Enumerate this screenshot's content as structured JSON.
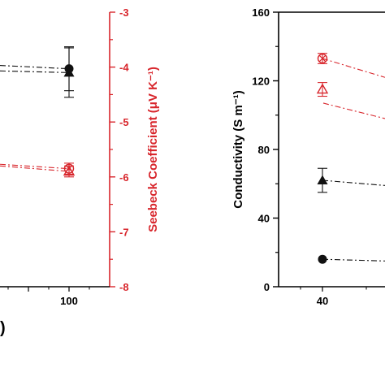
{
  "colors": {
    "black": "#111111",
    "red": "#d8262c"
  },
  "chart_data": [
    {
      "type": "line",
      "panel": "left",
      "xlim": [
        0,
        130
      ],
      "x_ticks": [
        100
      ],
      "x_tick_labels": [
        "100"
      ],
      "xlabel_fragment": ")",
      "y_right": {
        "label": "Seebeck Coefficient (μV K⁻¹)",
        "ylim": [
          -8,
          -3
        ],
        "ticks": [
          -3,
          -4,
          -5,
          -6,
          -7,
          -8
        ],
        "tick_labels": [
          "-3",
          "-4",
          "-5",
          "-6",
          "-7",
          "-8"
        ]
      },
      "series": [
        {
          "marker": "circle",
          "color": "black",
          "x_from": 0,
          "points": [
            {
              "x": 100,
              "y": -4.03,
              "err": 0.4
            }
          ],
          "y_start": -3.97
        },
        {
          "marker": "triangle",
          "color": "black",
          "x_from": 0,
          "points": [
            {
              "x": 100,
              "y": -4.1,
              "err": 0.45
            }
          ],
          "y_start": -4.07
        },
        {
          "marker": "open-circle-x",
          "color": "red",
          "x_from": 0,
          "points": [
            {
              "x": 100,
              "y": -5.85,
              "err": 0.1
            }
          ],
          "y_start": -5.77
        },
        {
          "marker": "open-triangle",
          "color": "red",
          "x_from": 0,
          "points": [
            {
              "x": 100,
              "y": -5.9,
              "err": 0.1
            }
          ],
          "y_start": -5.8
        }
      ]
    },
    {
      "type": "line",
      "panel": "right",
      "xlim": [
        30,
        70
      ],
      "x_ticks": [
        40
      ],
      "x_tick_labels": [
        "40"
      ],
      "ylabel": "Conductivity (S m⁻¹)",
      "ylim": [
        0,
        160
      ],
      "y_ticks": [
        0,
        40,
        80,
        120,
        160
      ],
      "y_tick_labels": [
        "0",
        "40",
        "80",
        "120",
        "160"
      ],
      "series": [
        {
          "marker": "open-circle-x",
          "color": "red",
          "points": [
            {
              "x": 40,
              "y": 133,
              "err": 3
            }
          ],
          "y_end": 122
        },
        {
          "marker": "open-triangle",
          "color": "red",
          "points": [
            {
              "x": 40,
              "y": 115,
              "err": 4
            }
          ],
          "y_end": 98
        },
        {
          "marker": "triangle",
          "color": "black",
          "points": [
            {
              "x": 40,
              "y": 62,
              "err": 7
            }
          ],
          "y_end": 59
        },
        {
          "marker": "circle",
          "color": "black",
          "points": [
            {
              "x": 40,
              "y": 16,
              "err": 0
            }
          ],
          "y_end": 15
        }
      ]
    }
  ]
}
